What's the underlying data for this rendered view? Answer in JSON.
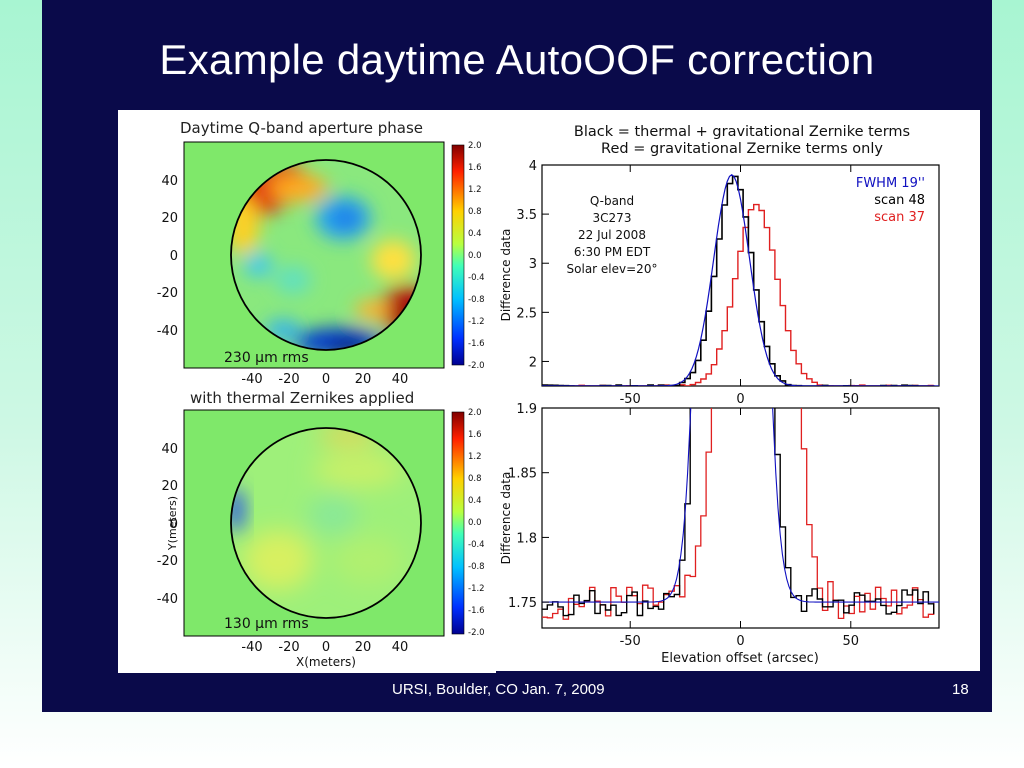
{
  "slide": {
    "title": "Example daytime AutoOOF correction",
    "footer": "URSI, Boulder, CO Jan. 7, 2009",
    "page_number": "18"
  },
  "colors": {
    "slide_background": "#0a0a4a",
    "page_background": "#a8f5d2",
    "black_trace": "#000000",
    "red_trace": "#e02020",
    "blue_trace": "#1010c0"
  },
  "chart_data": [
    {
      "type": "heatmap",
      "title": "Daytime Q-band aperture phase",
      "annotation": "230 μm rms",
      "colorbar_ticks": [
        "2.0",
        "1.6",
        "1.2",
        "0.8",
        "0.4",
        "0.0",
        "-0.4",
        "-0.8",
        "-1.2",
        "-1.6",
        "-2.0"
      ],
      "x_ticks": [
        "-40",
        "-20",
        "0",
        "20",
        "40"
      ],
      "y_ticks": [
        "40",
        "20",
        "0",
        "-20",
        "-40"
      ],
      "features": [
        "red high-phase arc at upper-left rim",
        "blue low-phase spot near center-right",
        "dark red region at lower-right rim",
        "blue region at bottom rim"
      ]
    },
    {
      "type": "heatmap",
      "title": "with thermal Zernikes applied",
      "annotation": "130 μm rms",
      "xlabel": "X(meters)",
      "ylabel": "Y(meters)",
      "colorbar_ticks": [
        "2.0",
        "1.6",
        "1.2",
        "0.8",
        "0.4",
        "0.0",
        "-0.4",
        "-0.8",
        "-1.2",
        "-1.6",
        "-2.0"
      ],
      "x_ticks": [
        "-40",
        "-20",
        "0",
        "20",
        "40"
      ],
      "y_ticks": [
        "40",
        "20",
        "0",
        "-20",
        "-40"
      ],
      "features": [
        "mostly flat green-yellow",
        "small blue patch at left rim"
      ]
    },
    {
      "type": "line",
      "title_lines": [
        "Black = thermal + gravitational Zernike terms",
        "Red = gravitational Zernike terms only"
      ],
      "ylabel": "Difference data",
      "xlim": [
        -90,
        90
      ],
      "ylim": [
        1.75,
        4.0
      ],
      "x_ticks": [
        "-50",
        "0",
        "50"
      ],
      "y_ticks": [
        "2",
        "2.5",
        "3",
        "3.5",
        "4"
      ],
      "info_lines": [
        "Q-band",
        "3C273",
        "22 Jul 2008",
        "6:30 PM EDT",
        "Solar elev=20°"
      ],
      "legend": [
        "FWHM 19''",
        "scan 48",
        "scan 37"
      ],
      "series": [
        {
          "name": "scan 48",
          "color": "#000000",
          "center": -4,
          "fwhm": 19,
          "peak": 3.88,
          "base": 1.75
        },
        {
          "name": "scan 37",
          "color": "#e02020",
          "center": 6,
          "fwhm": 22,
          "peak": 3.6,
          "base": 1.75
        },
        {
          "name": "FWHM 19''",
          "color": "#1010c0",
          "center": -4,
          "fwhm": 19,
          "peak": 3.9,
          "base": 1.75
        }
      ]
    },
    {
      "type": "line",
      "xlabel": "Elevation offset (arcsec)",
      "ylabel": "Difference data",
      "xlim": [
        -90,
        90
      ],
      "ylim": [
        1.73,
        1.9
      ],
      "x_ticks": [
        "-50",
        "0",
        "50"
      ],
      "y_ticks": [
        "1.75",
        "1.8",
        "1.85",
        "1.9"
      ]
    }
  ]
}
